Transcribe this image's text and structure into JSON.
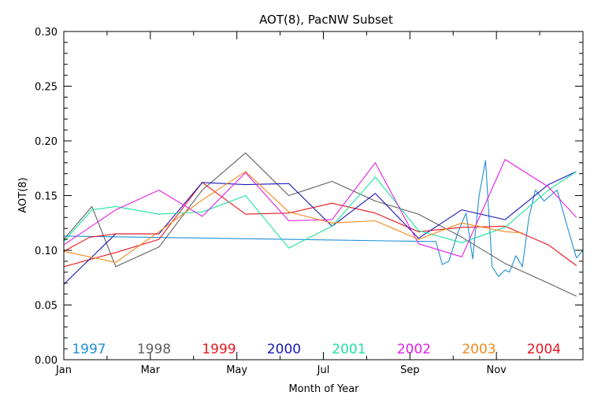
{
  "chart_data": {
    "type": "line",
    "title": "AOT(8), PacNW Subset",
    "xlabel": "Month of Year",
    "ylabel": "AOT(8)",
    "xlim": [
      1,
      13
    ],
    "ylim": [
      0.0,
      0.3
    ],
    "x_ticks": [
      {
        "value": 1,
        "label": "Jan"
      },
      {
        "value": 3,
        "label": "Mar"
      },
      {
        "value": 5,
        "label": "May"
      },
      {
        "value": 7,
        "label": "Jul"
      },
      {
        "value": 9,
        "label": "Sep"
      },
      {
        "value": 11,
        "label": "Nov"
      }
    ],
    "y_ticks": [
      "0.00",
      "0.05",
      "0.10",
      "0.15",
      "0.20",
      "0.25",
      "0.30"
    ],
    "grid": false,
    "legend_position": "bottom-inside",
    "series": [
      {
        "name": "1997",
        "color": "#1f8fd6",
        "x": [
          1.0,
          9.6,
          9.75,
          9.9,
          10.1,
          10.2,
          10.3,
          10.45,
          10.6,
          10.75,
          10.9,
          11.05,
          11.2,
          11.3,
          11.45,
          11.6,
          11.75,
          11.9,
          12.1,
          12.4,
          12.65,
          12.85,
          13.0
        ],
        "y": [
          0.113,
          0.108,
          0.087,
          0.09,
          0.115,
          0.125,
          0.134,
          0.092,
          0.15,
          0.182,
          0.085,
          0.076,
          0.082,
          0.08,
          0.095,
          0.085,
          0.13,
          0.155,
          0.145,
          0.155,
          0.12,
          0.093,
          0.1
        ]
      },
      {
        "name": "1998",
        "color": "#606060",
        "x": [
          1.0,
          1.65,
          2.2,
          3.2,
          4.2,
          5.2,
          6.2,
          7.2,
          8.2,
          9.2,
          10.2,
          11.2,
          12.2,
          12.85
        ],
        "y": [
          0.11,
          0.14,
          0.085,
          0.103,
          0.155,
          0.189,
          0.15,
          0.163,
          0.145,
          0.133,
          0.112,
          0.088,
          0.07,
          0.058
        ]
      },
      {
        "name": "1999",
        "color": "#e8161f",
        "x": [
          1.0,
          2.2,
          3.2,
          4.2,
          5.2,
          6.2,
          7.2,
          8.2,
          9.2,
          10.2,
          11.2,
          12.2,
          12.85
        ],
        "y": [
          0.085,
          0.098,
          0.11,
          0.162,
          0.133,
          0.134,
          0.143,
          0.134,
          0.117,
          0.121,
          0.122,
          0.105,
          0.086
        ]
      },
      {
        "name": "2000",
        "color": "#1919b8",
        "x": [
          1.0,
          2.2,
          3.2,
          4.2,
          5.2,
          6.2,
          7.2,
          8.2,
          9.2,
          10.2,
          11.2,
          12.2,
          12.85
        ],
        "y": [
          0.069,
          0.115,
          0.115,
          0.162,
          0.16,
          0.161,
          0.122,
          0.152,
          0.111,
          0.137,
          0.128,
          0.16,
          0.172
        ]
      },
      {
        "name": "2001",
        "color": "#1ee3a0",
        "x": [
          1.0,
          1.65,
          2.2,
          3.2,
          4.2,
          5.2,
          6.2,
          7.2,
          8.2,
          9.2,
          10.2,
          11.2,
          12.2,
          12.85
        ],
        "y": [
          0.108,
          0.137,
          0.14,
          0.133,
          0.135,
          0.15,
          0.102,
          0.122,
          0.167,
          0.118,
          0.107,
          0.121,
          0.155,
          0.172
        ]
      },
      {
        "name": "2002",
        "color": "#e21fe6",
        "x": [
          1.0,
          2.2,
          3.2,
          4.2,
          5.2,
          6.2,
          7.2,
          8.2,
          9.2,
          10.2,
          11.2,
          12.2,
          12.85
        ],
        "y": [
          0.105,
          0.137,
          0.155,
          0.131,
          0.171,
          0.127,
          0.128,
          0.18,
          0.106,
          0.094,
          0.183,
          0.158,
          0.13
        ]
      },
      {
        "name": "2003",
        "color": "#f08a1c",
        "x": [
          1.0,
          2.2,
          3.2,
          4.2,
          5.2,
          6.2,
          7.2,
          8.2,
          9.2,
          10.2,
          11.2,
          11.6
        ],
        "y": [
          0.099,
          0.089,
          0.117,
          0.146,
          0.172,
          0.135,
          0.125,
          0.127,
          0.11,
          0.125,
          0.117,
          0.116
        ]
      },
      {
        "name": "2004",
        "color": "#e8161f",
        "x": [
          1.0,
          1.6,
          2.2,
          3.2
        ],
        "y": [
          0.099,
          0.112,
          0.115,
          0.115
        ]
      }
    ]
  }
}
